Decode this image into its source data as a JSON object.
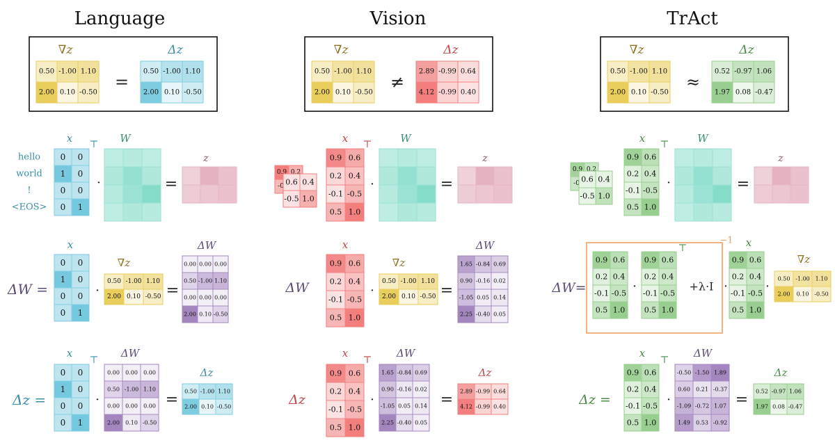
{
  "columns": [
    {
      "id": "language",
      "title": "Language"
    },
    {
      "id": "vision",
      "title": "Vision"
    },
    {
      "id": "tract",
      "title": "TrAct"
    }
  ],
  "symbols": {
    "grad_z": "∇z",
    "delta_z": "Δz",
    "delta_W": "ΔW",
    "x": "x",
    "W": "W",
    "z": "z",
    "transpose": "⊤",
    "dot": "·",
    "eq": "=",
    "neq": "≠",
    "approx": "≈",
    "plus_lambda_I": "+λ·I",
    "inverse": "−1"
  },
  "matrices": {
    "grad_z": [
      [
        "0.50",
        "-1.00",
        "1.10"
      ],
      [
        "2.00",
        "0.10",
        "-0.50"
      ]
    ],
    "dz_language": [
      [
        "0.50",
        "-1.00",
        "1.10"
      ],
      [
        "2.00",
        "0.10",
        "-0.50"
      ]
    ],
    "dz_vision": [
      [
        "2.89",
        "-0.99",
        "0.64"
      ],
      [
        "4.12",
        "-0.99",
        "0.40"
      ]
    ],
    "dz_tract": [
      [
        "0.52",
        "-0.97",
        "1.06"
      ],
      [
        "1.97",
        "0.08",
        "-0.47"
      ]
    ],
    "x_language": [
      [
        "0",
        "0"
      ],
      [
        "1",
        "0"
      ],
      [
        "0",
        "0"
      ],
      [
        "0",
        "1"
      ]
    ],
    "x_vision": [
      [
        "0.9",
        "0.6"
      ],
      [
        "0.2",
        "0.4"
      ],
      [
        "-0.1",
        "-0.5"
      ],
      [
        "0.5",
        "1.0"
      ]
    ],
    "x_tract": [
      [
        "0.9",
        "0.6"
      ],
      [
        "0.2",
        "0.4"
      ],
      [
        "-0.1",
        "-0.5"
      ],
      [
        "0.5",
        "1.0"
      ]
    ],
    "patch_front": [
      [
        "0.6",
        "0.4"
      ],
      [
        "-0.5",
        "1.0"
      ]
    ],
    "patch_back": [
      [
        "0.9",
        "0.2"
      ],
      [
        "-0.",
        "0."
      ]
    ],
    "dW_language": [
      [
        "0.00",
        "0.00",
        "0.00"
      ],
      [
        "0.50",
        "-1.00",
        "1.10"
      ],
      [
        "0.00",
        "0.00",
        "0.00"
      ],
      [
        "2.00",
        "0.10",
        "-0.50"
      ]
    ],
    "dW_vision": [
      [
        "1.65",
        "-0.84",
        "0.69"
      ],
      [
        "0.90",
        "-0.16",
        "0.02"
      ],
      [
        "-1.05",
        "0.05",
        "0.14"
      ],
      [
        "2.25",
        "-0.40",
        "0.05"
      ]
    ],
    "dW_tract": [
      [
        "-0.50",
        "-1.50",
        "1.89"
      ],
      [
        "0.60",
        "0.21",
        "-0.37"
      ],
      [
        "-1.09",
        "-0.72",
        "1.07"
      ],
      [
        "1.49",
        "0.53",
        "-0.92"
      ]
    ]
  },
  "tokens": [
    "hello",
    "world",
    "!",
    "<EOS>"
  ],
  "colors": {
    "yellow": "#e8c84a",
    "blue": "#6ec6dc",
    "red": "#f07070",
    "green": "#8cc882",
    "teal": "#6fd6c0",
    "pink": "#dc98aa",
    "purple": "#9a78b8",
    "orange": "#f0a060"
  }
}
